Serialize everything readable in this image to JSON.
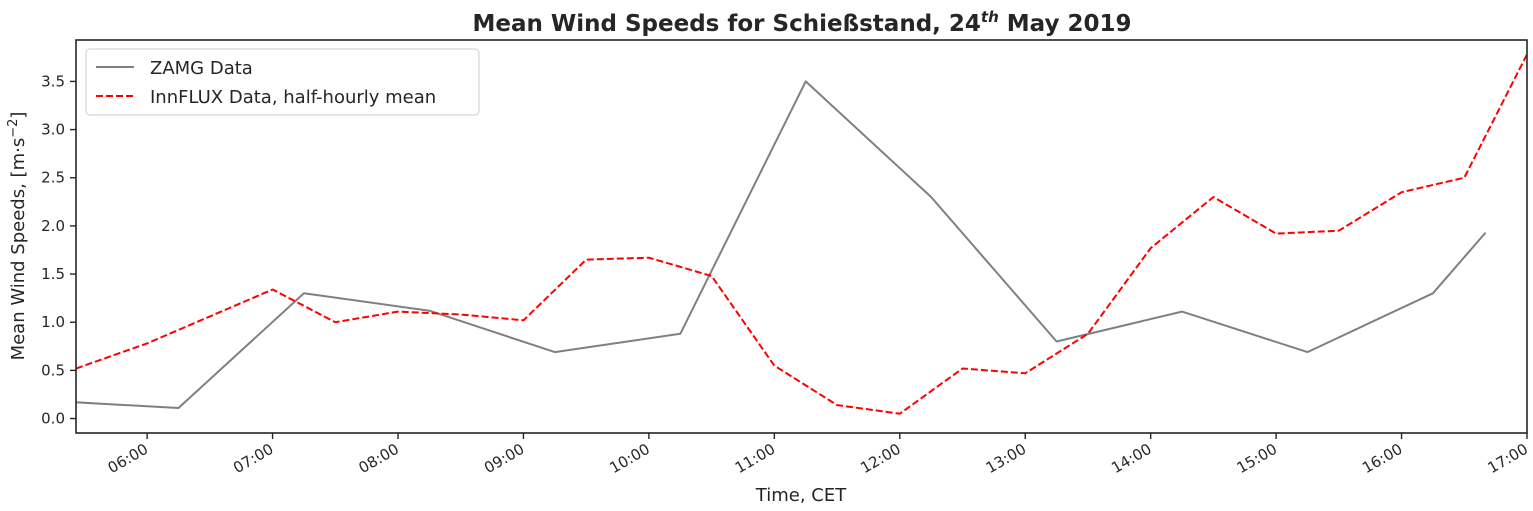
{
  "chart_data": {
    "type": "line",
    "title_main": "Mean Wind Speeds for Schießstand, 24",
    "title_sup": "th",
    "title_end": " May 2019",
    "xlabel": "Time, CET",
    "ylabel": "Mean Wind Speeds, [m·s",
    "ylabel_sup": "−2",
    "ylabel_end": "]",
    "x_ticks": [
      "06:00",
      "07:00",
      "08:00",
      "09:00",
      "10:00",
      "11:00",
      "12:00",
      "13:00",
      "14:00",
      "15:00",
      "16:00",
      "17:00"
    ],
    "x_tick_hours": [
      6,
      7,
      8,
      9,
      10,
      11,
      12,
      13,
      14,
      15,
      16,
      17
    ],
    "xlim_hours": [
      5.433,
      17
    ],
    "y_ticks": [
      "0.0",
      "0.5",
      "1.0",
      "1.5",
      "2.0",
      "2.5",
      "3.0",
      "3.5"
    ],
    "y_tick_values": [
      0,
      0.5,
      1,
      1.5,
      2,
      2.5,
      3,
      3.5
    ],
    "ylim": [
      -0.15,
      3.93
    ],
    "series": [
      {
        "name": "ZAMG Data",
        "color": "#808080",
        "style": "solid",
        "x_hours": [
          5.0,
          6.25,
          7.25,
          8.25,
          9.25,
          10.25,
          11.25,
          12.25,
          13.25,
          14.25,
          15.25,
          16.25,
          16.67
        ],
        "values": [
          0.2,
          0.11,
          1.3,
          1.12,
          0.69,
          0.88,
          3.5,
          2.3,
          0.8,
          1.11,
          0.69,
          1.3,
          1.93
        ]
      },
      {
        "name": "InnFLUX Data, half-hourly mean",
        "color": "#ff0000",
        "style": "dashed",
        "x_hours": [
          5.433,
          6.0,
          7.0,
          7.5,
          8.0,
          8.5,
          9.0,
          9.5,
          10.0,
          10.5,
          11.0,
          11.5,
          12.0,
          12.5,
          13.0,
          13.5,
          14.0,
          14.5,
          15.0,
          15.5,
          16.0,
          16.5,
          17.0
        ],
        "values": [
          0.52,
          0.78,
          1.34,
          1.0,
          1.11,
          1.08,
          1.02,
          1.65,
          1.67,
          1.48,
          0.55,
          0.14,
          0.05,
          0.52,
          0.47,
          0.88,
          1.77,
          2.3,
          1.92,
          1.95,
          2.35,
          2.5,
          3.78
        ]
      }
    ],
    "legend_position": "top-left",
    "grid": false
  }
}
